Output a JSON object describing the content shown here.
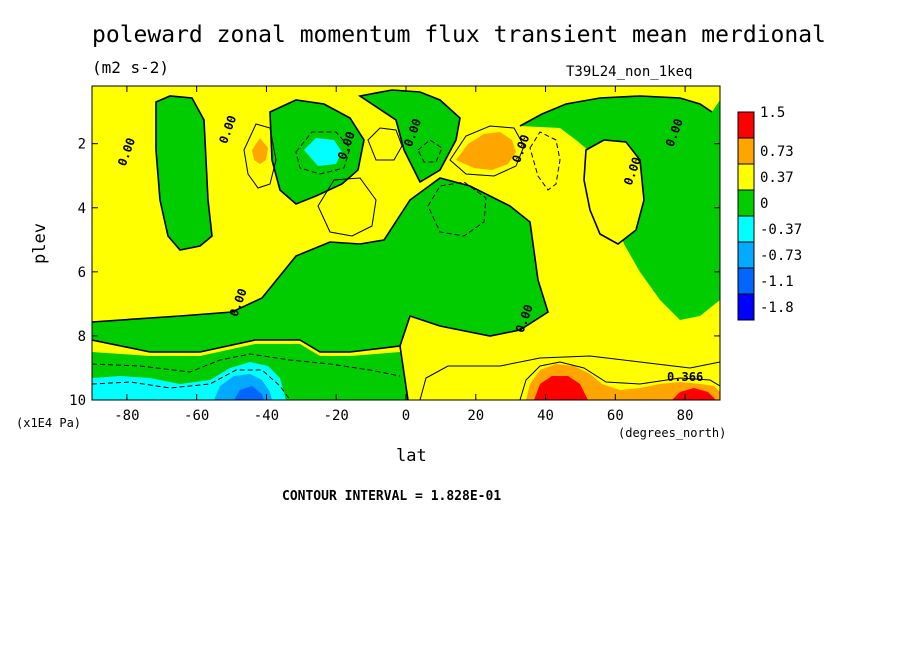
{
  "chart_data": {
    "type": "heatmap",
    "title": "poleward zonal momentum flux transient mean merdional",
    "units": "(m2 s-2)",
    "run_name": "T39L24_non_1keq",
    "xlabel": "lat",
    "ylabel": "plev",
    "x_unit_note": "(degrees_north)",
    "y_unit_note": "(x1E4 Pa)",
    "contour_interval_text": "CONTOUR INTERVAL = 1.828E-01",
    "xlim": [
      -90,
      90
    ],
    "ylim": [
      10,
      0.2
    ],
    "x_ticks": [
      -80,
      -60,
      -40,
      -20,
      0,
      20,
      40,
      60,
      80
    ],
    "x_tick_labels": [
      "-80",
      "-60",
      "-40",
      "-20",
      "0",
      "20",
      "40",
      "60",
      "80"
    ],
    "y_ticks": [
      2,
      4,
      6,
      8,
      10
    ],
    "y_tick_labels": [
      "2",
      "4",
      "6",
      "8",
      "10"
    ],
    "contour_labels": [
      {
        "text": "0.00",
        "lat": -79,
        "plev": 2.3
      },
      {
        "text": "0.00",
        "lat": -50,
        "plev": 1.6
      },
      {
        "text": "0.00",
        "lat": -47,
        "plev": 7.0
      },
      {
        "text": "0.00",
        "lat": -16,
        "plev": 2.1
      },
      {
        "text": "0.00",
        "lat": 3,
        "plev": 1.7
      },
      {
        "text": "0.00",
        "lat": 35,
        "plev": 7.5
      },
      {
        "text": "0.00",
        "lat": 34,
        "plev": 2.2
      },
      {
        "text": "0.00",
        "lat": 66,
        "plev": 2.9
      },
      {
        "text": "0.00",
        "lat": 78,
        "plev": 1.7
      },
      {
        "text": "0.366",
        "lat": 80,
        "plev": 9.4
      }
    ],
    "legend": {
      "placement": "right",
      "levels": [
        "1.5",
        "0.73",
        "0.37",
        "0",
        "-0.37",
        "-0.73",
        "-1.1",
        "-1.8"
      ],
      "colors": [
        "#ff0000",
        "#ffa500",
        "#ffff00",
        "#00cc00",
        "#00ffff",
        "#00aaff",
        "#0066ff",
        "#0000ff"
      ]
    },
    "colors": {
      "positive_high": "#ff0000",
      "positive_mid": "#ffa500",
      "positive_low": "#ffff00",
      "negative_low": "#00cc00",
      "negative_mid": "#00ffff",
      "negative_high": "#00aaff",
      "negative_strong": "#0066ff"
    }
  }
}
